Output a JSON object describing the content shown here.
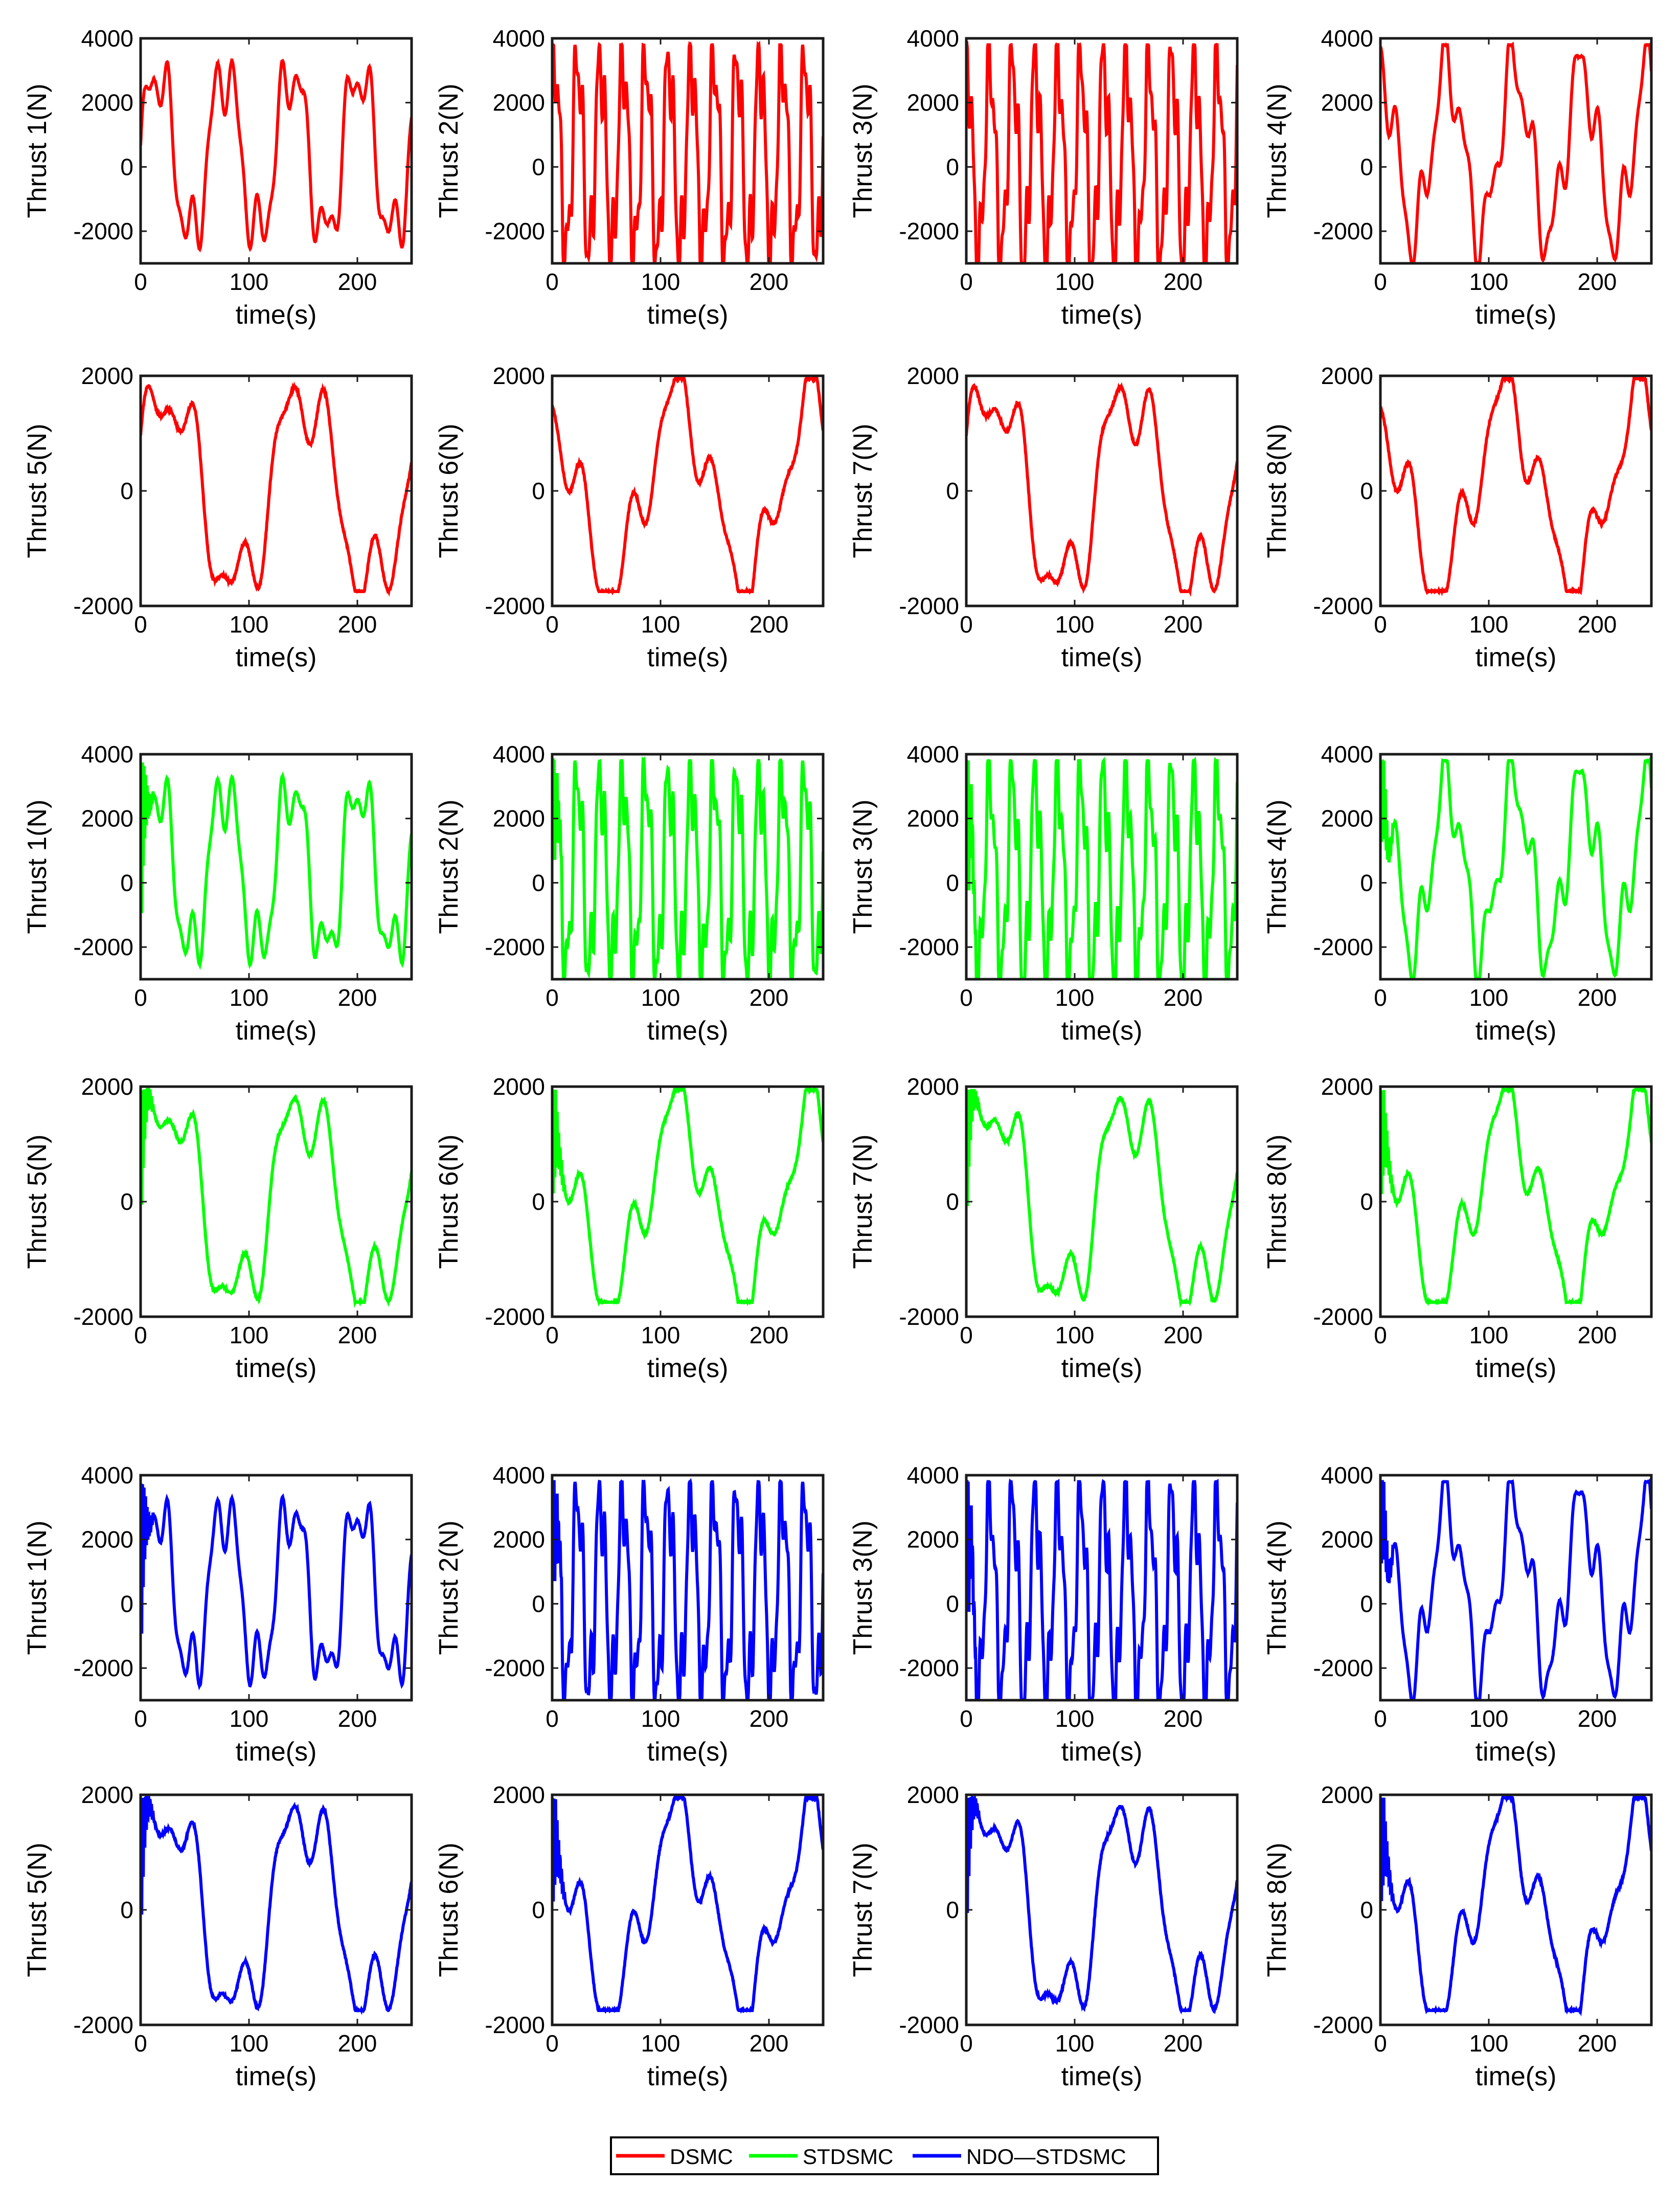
{
  "figure": {
    "x_label": "time(s)",
    "x_ticks": [
      0,
      100,
      200
    ],
    "x_range": [
      0,
      250
    ]
  },
  "colors": {
    "DSMC": "#ff0000",
    "STDSMC": "#00ff00",
    "NDO—STDSMC": "#0000ff"
  },
  "legend": [
    {
      "label": "DSMC",
      "color": "#ff0000"
    },
    {
      "label": "STDSMC",
      "color": "#00ff00"
    },
    {
      "label": "NDO—STDSMC",
      "color": "#0000ff"
    }
  ],
  "chart_data": [
    {
      "type": "line",
      "title": "",
      "series": [
        {
          "name": "DSMC",
          "color": "#ff0000"
        },
        {
          "name": "STDSMC",
          "color": "#00ff00"
        },
        {
          "name": "NDO—STDSMC",
          "color": "#0000ff"
        }
      ],
      "xlabel": "time(s)",
      "thrusters": [
        {
          "id": 1,
          "ylabel": "Thrust 1(N)",
          "ylim": [
            -3000,
            4000
          ],
          "yticks": [
            -2000,
            0,
            2000,
            4000
          ],
          "amplitude": 2600,
          "offset": 400,
          "period": 62,
          "phase": 0.0,
          "sat_hi": 3800,
          "sat_lo": -3000
        },
        {
          "id": 2,
          "ylabel": "Thrust 2(N)",
          "ylim": [
            -3000,
            4000
          ],
          "yticks": [
            -2000,
            0,
            2000,
            4000
          ],
          "amplitude": 3000,
          "offset": 300,
          "period": 21,
          "phase": 0.8,
          "sat_hi": 3800,
          "sat_lo": -3000
        },
        {
          "id": 3,
          "ylabel": "Thrust 3(N)",
          "ylim": [
            -3000,
            4000
          ],
          "yticks": [
            -2000,
            0,
            2000,
            4000
          ],
          "amplitude": 3100,
          "offset": 200,
          "period": 21,
          "phase": 1.3,
          "sat_hi": 3800,
          "sat_lo": -3000
        },
        {
          "id": 4,
          "ylabel": "Thrust 4(N)",
          "ylim": [
            -3000,
            4000
          ],
          "yticks": [
            -2000,
            0,
            2000,
            4000
          ],
          "amplitude": 2600,
          "offset": 500,
          "period": 62,
          "phase": 1.6,
          "sat_hi": 3800,
          "sat_lo": -3000
        },
        {
          "id": 5,
          "ylabel": "Thrust 5(N)",
          "ylim": [
            -2000,
            2000
          ],
          "yticks": [
            -2000,
            0,
            2000
          ],
          "amplitude": 1700,
          "offset": 0,
          "period": 125,
          "phase": 0.3,
          "sat_hi": 1950,
          "sat_lo": -1750
        },
        {
          "id": 6,
          "ylabel": "Thrust 6(N)",
          "ylim": [
            -2000,
            2000
          ],
          "yticks": [
            -2000,
            0,
            2000
          ],
          "amplitude": 1600,
          "offset": 0,
          "period": 125,
          "phase": 2.0,
          "sat_hi": 1950,
          "sat_lo": -1750
        },
        {
          "id": 7,
          "ylabel": "Thrust 7(N)",
          "ylim": [
            -2000,
            2000
          ],
          "yticks": [
            -2000,
            0,
            2000
          ],
          "amplitude": 1700,
          "offset": 0,
          "period": 125,
          "phase": 0.3,
          "sat_hi": 1950,
          "sat_lo": -1750
        },
        {
          "id": 8,
          "ylabel": "Thrust 8(N)",
          "ylim": [
            -2000,
            2000
          ],
          "yticks": [
            -2000,
            0,
            2000
          ],
          "amplitude": 1600,
          "offset": 0,
          "period": 125,
          "phase": 2.0,
          "sat_hi": 1950,
          "sat_lo": -1750
        }
      ]
    }
  ]
}
